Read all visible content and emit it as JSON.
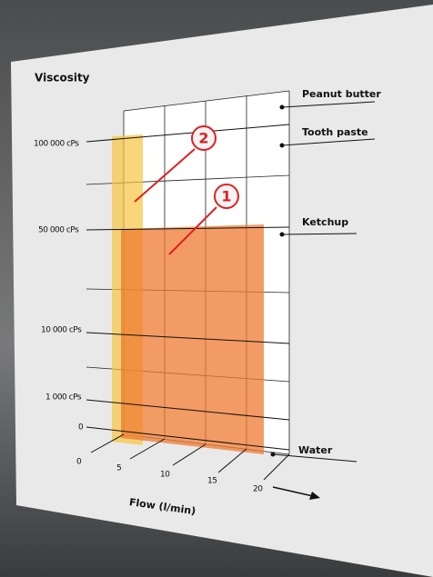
{
  "title": "Viscosity",
  "y_labels": [
    "100 000 cPs",
    "50 000 cPs",
    "10 000 cPs",
    "1 000 cPs",
    "0"
  ],
  "x_labels": [
    "0",
    "5",
    "10",
    "15",
    "20"
  ],
  "x_axis_label": "Flow (l/min)",
  "materials": [
    "Peanut butter",
    "Tooth paste",
    "Ketchup",
    "Water"
  ],
  "callouts": [
    "1",
    "2"
  ]
}
